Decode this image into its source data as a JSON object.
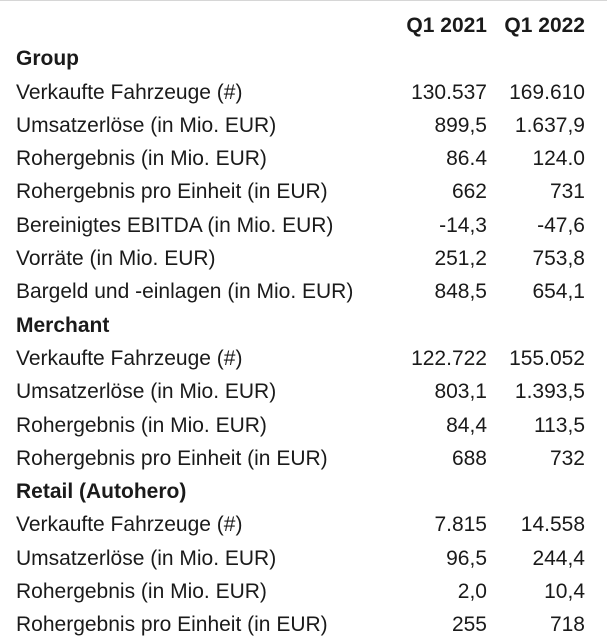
{
  "chart_data": {
    "type": "table",
    "title": "",
    "columns": [
      "Q1 2021",
      "Q1 2022"
    ],
    "layout": {
      "value_alignment": "right",
      "grid": false,
      "top_border_color": "#d6d6d6",
      "text_color": "#1a1a1a",
      "background_color": "#ffffff"
    },
    "sections": [
      {
        "title": "Group",
        "rows": [
          {
            "label": "Verkaufte Fahrzeuge (#)",
            "values": [
              "130.537",
              "169.610"
            ]
          },
          {
            "label": "Umsatzerlöse (in Mio. EUR)",
            "values": [
              "899,5",
              "1.637,9"
            ]
          },
          {
            "label": "Rohergebnis (in Mio. EUR)",
            "values": [
              "86.4",
              "124.0"
            ]
          },
          {
            "label": "Rohergebnis pro Einheit (in EUR)",
            "values": [
              "662",
              "731"
            ]
          },
          {
            "label": "Bereinigtes EBITDA (in Mio. EUR)",
            "values": [
              "-14,3",
              "-47,6"
            ]
          },
          {
            "label": "Vorräte (in Mio. EUR)",
            "values": [
              "251,2",
              "753,8"
            ]
          },
          {
            "label": "Bargeld und -einlagen (in Mio. EUR)",
            "values": [
              "848,5",
              "654,1"
            ]
          }
        ]
      },
      {
        "title": "Merchant",
        "rows": [
          {
            "label": "Verkaufte Fahrzeuge (#)",
            "values": [
              "122.722",
              "155.052"
            ]
          },
          {
            "label": "Umsatzerlöse (in Mio. EUR)",
            "values": [
              "803,1",
              "1.393,5"
            ]
          },
          {
            "label": "Rohergebnis (in Mio. EUR)",
            "values": [
              "84,4",
              "113,5"
            ]
          },
          {
            "label": "Rohergebnis pro Einheit (in EUR)",
            "values": [
              "688",
              "732"
            ]
          }
        ]
      },
      {
        "title": "Retail (Autohero)",
        "rows": [
          {
            "label": "Verkaufte Fahrzeuge (#)",
            "values": [
              "7.815",
              "14.558"
            ]
          },
          {
            "label": "Umsatzerlöse (in Mio. EUR)",
            "values": [
              "96,5",
              "244,4"
            ]
          },
          {
            "label": "Rohergebnis (in Mio. EUR)",
            "values": [
              "2,0",
              "10,4"
            ]
          },
          {
            "label": "Rohergebnis pro Einheit (in EUR)",
            "values": [
              "255",
              "718"
            ]
          }
        ]
      }
    ]
  }
}
